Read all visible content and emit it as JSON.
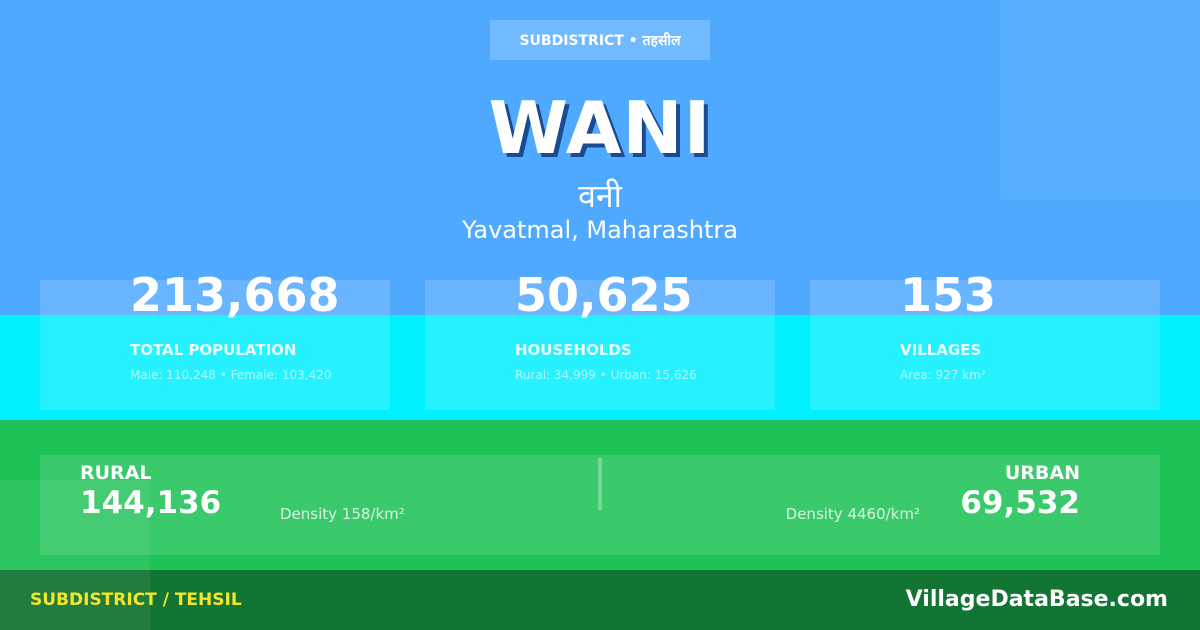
{
  "header": {
    "badge": "SUBDISTRICT • तहसील",
    "title": "WANI",
    "title_hindi": "वनी",
    "location": "Yavatmal, Maharashtra"
  },
  "stats": [
    {
      "value": "213,668",
      "label": "TOTAL POPULATION",
      "detail": "Male: 110,248 • Female: 103,420"
    },
    {
      "value": "50,625",
      "label": "HOUSEHOLDS",
      "detail": "Rural: 34,999 • Urban: 15,626"
    },
    {
      "value": "153",
      "label": "VILLAGES",
      "detail": "Area: 927 km²"
    }
  ],
  "rural": {
    "label": "RURAL",
    "value": "144,136",
    "density": "Density 158/km²"
  },
  "urban": {
    "label": "URBAN",
    "value": "69,532",
    "density": "Density 4460/km²"
  },
  "footer": {
    "category": "SUBDISTRICT / TEHSIL",
    "site": "VillageDataBase.com"
  },
  "colors": {
    "sky": "#4fa9ff",
    "cyan": "#00f0ff",
    "green": "#1fc257",
    "dark_green": "#137533",
    "yellow": "#f5e52a"
  }
}
